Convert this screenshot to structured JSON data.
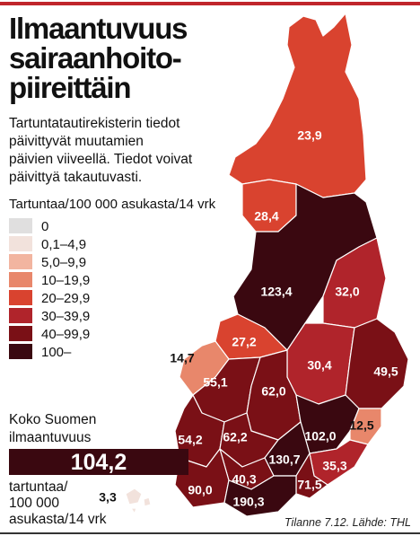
{
  "header": {
    "title": [
      "Ilmaantuvuus",
      "sairaanhoito-",
      "piireittäin"
    ],
    "description": [
      "Tartuntatautirekisterin tiedot",
      "päivittyvät muutamien",
      "päivien viiveellä. Tiedot voivat",
      "päivittyä takautuvasti."
    ]
  },
  "legend": {
    "title": "Tartuntaa/100 000 asukasta/14 vrk",
    "items": [
      {
        "label": "0",
        "color": "#e0dfdf"
      },
      {
        "label": "0,1–4,9",
        "color": "#f2e2dc"
      },
      {
        "label": "5,0–9,9",
        "color": "#f2b5a0"
      },
      {
        "label": "10–19,9",
        "color": "#e8876b"
      },
      {
        "label": "20–29,9",
        "color": "#d9432f"
      },
      {
        "label": "30–39,9",
        "color": "#b0242b"
      },
      {
        "label": "40–99,9",
        "color": "#7a1016"
      },
      {
        "label": "100–",
        "color": "#3a0810"
      }
    ]
  },
  "regions": [
    {
      "label": "23,9",
      "color": "#d9432f"
    },
    {
      "label": "28,4",
      "color": "#d9432f"
    },
    {
      "label": "123,4",
      "color": "#3a0810"
    },
    {
      "label": "32,0",
      "color": "#b0242b"
    },
    {
      "label": "27,2",
      "color": "#d9432f"
    },
    {
      "label": "14,7",
      "color": "#e8876b"
    },
    {
      "label": "30,4",
      "color": "#b0242b"
    },
    {
      "label": "49,5",
      "color": "#7a1016"
    },
    {
      "label": "55,1",
      "color": "#7a1016"
    },
    {
      "label": "62,0",
      "color": "#7a1016"
    },
    {
      "label": "102,0",
      "color": "#3a0810"
    },
    {
      "label": "12,5",
      "color": "#e8876b"
    },
    {
      "label": "54,2",
      "color": "#7a1016"
    },
    {
      "label": "62,2",
      "color": "#7a1016"
    },
    {
      "label": "130,7",
      "color": "#3a0810"
    },
    {
      "label": "35,3",
      "color": "#b0242b"
    },
    {
      "label": "71,5",
      "color": "#7a1016"
    },
    {
      "label": "40,3",
      "color": "#7a1016"
    },
    {
      "label": "90,0",
      "color": "#7a1016"
    },
    {
      "label": "190,3",
      "color": "#3a0810"
    },
    {
      "label": "3,3",
      "color": "#f2e2dc"
    }
  ],
  "national": {
    "heading": [
      "Koko Suomen",
      "ilmaantuvuus"
    ],
    "value": "104,2",
    "unit": [
      "tartuntaa/",
      "100 000",
      "asukasta/14 vrk"
    ]
  },
  "source": "Tilanne 7.12. Lähde: THL"
}
